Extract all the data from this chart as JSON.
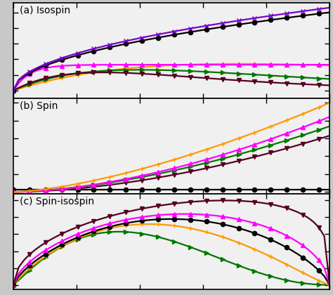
{
  "title_a": "(a) Isospin",
  "title_b": "(b) Spin",
  "title_c": "(c) Spin-isospin",
  "colors": {
    "black": "#000000",
    "purple": "#7700CC",
    "magenta": "#FF00FF",
    "maroon": "#550022",
    "green": "#007700",
    "orange": "#FF9900"
  },
  "bg_color": "#f0f0f0",
  "fig_bg": "#c8c8c8",
  "lw": 1.6,
  "msize": 4.5,
  "markevery": 3
}
